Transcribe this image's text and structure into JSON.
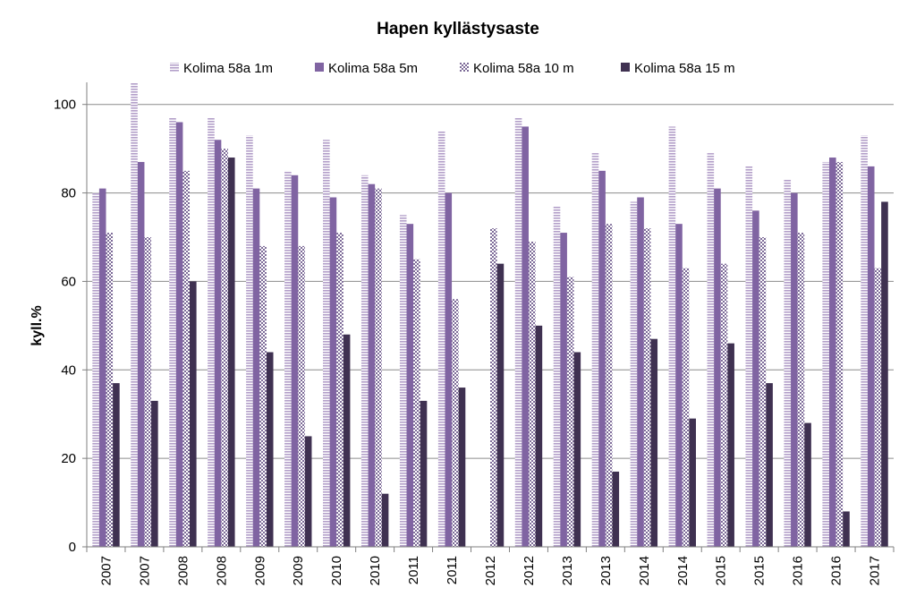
{
  "chart_data": {
    "type": "bar",
    "title": "Hapen kyllästysaste",
    "xlabel": "",
    "ylabel": "kyll.%",
    "ylim": [
      0,
      105
    ],
    "yticks": [
      0,
      20,
      40,
      60,
      80,
      100
    ],
    "grid": true,
    "legend_position": "top",
    "categories": [
      "2007",
      "2007",
      "2008",
      "2008",
      "2009",
      "2009",
      "2010",
      "2010",
      "2011",
      "2011",
      "2012",
      "2012",
      "2013",
      "2013",
      "2014",
      "2014",
      "2015",
      "2015",
      "2016",
      "2016",
      "2017"
    ],
    "series": [
      {
        "name": "Kolima 58a 1m",
        "color": "#b39fc9",
        "pattern": "horizontal-lines",
        "values": [
          80,
          105,
          97,
          97,
          93,
          85,
          92,
          84,
          75,
          94,
          null,
          97,
          77,
          89,
          78,
          95,
          89,
          86,
          83,
          87,
          93
        ]
      },
      {
        "name": "Kolima 58a 5m",
        "color": "#8064a2",
        "pattern": "solid",
        "values": [
          81,
          87,
          96,
          92,
          81,
          84,
          79,
          82,
          73,
          80,
          null,
          95,
          71,
          85,
          79,
          73,
          81,
          76,
          80,
          88,
          86
        ]
      },
      {
        "name": "Kolima 58a 10 m",
        "color": "#8a7aa3",
        "pattern": "checker",
        "values": [
          71,
          70,
          85,
          90,
          68,
          68,
          71,
          81,
          65,
          56,
          72,
          69,
          61,
          73,
          72,
          63,
          64,
          70,
          71,
          87,
          63
        ]
      },
      {
        "name": "Kolima 58a 15 m",
        "color": "#3f3151",
        "pattern": "solid",
        "values": [
          37,
          33,
          60,
          88,
          44,
          25,
          48,
          12,
          33,
          36,
          64,
          50,
          44,
          17,
          47,
          29,
          46,
          37,
          28,
          8,
          78
        ]
      }
    ]
  }
}
